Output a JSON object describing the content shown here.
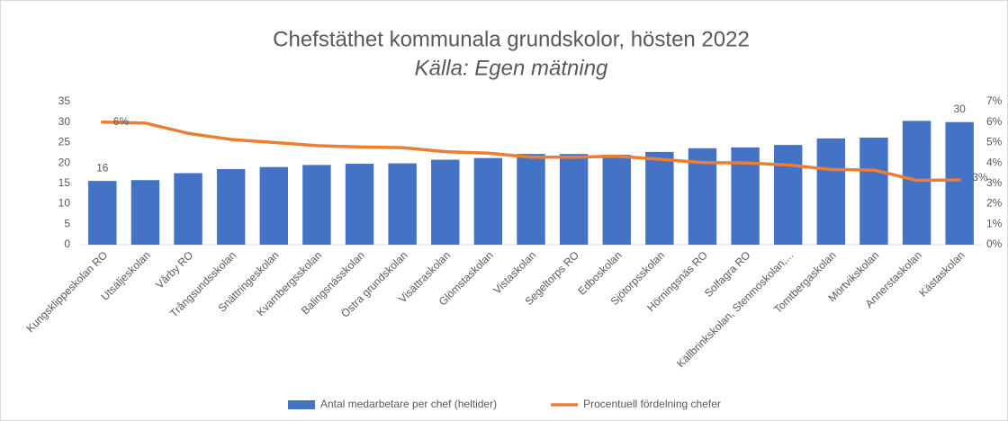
{
  "chart_data": {
    "type": "bar_line",
    "title": "Chefstäthet kommunala grundskolor, hösten 2022",
    "subtitle": "Källa: Egen mätning",
    "categories": [
      "Kungsklippeskolan RO",
      "Utsäljeskolan",
      "Vårby RO",
      "Trångsundsskolan",
      "Snättringeskolan",
      "Kvarnbergsskolan",
      "Balingsnässkolan",
      "Östra grundskolan",
      "Visättraskolan",
      "Glömstaskolan",
      "Vistaskolan",
      "Segeltorps RO",
      "Edboskolan",
      "Sjötorpsskolan",
      "Hörningsnäs RO",
      "Solfagra RO",
      "Källbrinkskolan, Stenmoskolan,...",
      "Tomtbergaskolan",
      "Mörtvikskolan",
      "Annerstaskolan",
      "Kästaskolan"
    ],
    "series": [
      {
        "name": "Antal medarbetare per chef (heltider)",
        "type": "bar",
        "color": "#4472c4",
        "values": [
          15.6,
          15.8,
          17.5,
          18.5,
          19.0,
          19.5,
          19.8,
          19.9,
          20.8,
          21.2,
          22.2,
          22.2,
          22.0,
          22.7,
          23.6,
          23.8,
          24.4,
          26.0,
          26.2,
          30.3,
          30.0
        ],
        "value_labels": [
          "16",
          null,
          null,
          null,
          null,
          null,
          null,
          null,
          null,
          null,
          null,
          null,
          null,
          null,
          null,
          null,
          null,
          null,
          null,
          null,
          "30"
        ]
      },
      {
        "name": "Procentuell fördelning chefer",
        "type": "line",
        "axis": "y2",
        "color": "#ed7d31",
        "values": [
          6.0,
          5.95,
          5.45,
          5.15,
          5.0,
          4.85,
          4.78,
          4.75,
          4.55,
          4.48,
          4.28,
          4.28,
          4.33,
          4.18,
          4.02,
          4.0,
          3.9,
          3.68,
          3.65,
          3.15,
          3.17
        ],
        "value_labels": [
          "6%",
          null,
          null,
          null,
          null,
          null,
          null,
          null,
          null,
          null,
          null,
          null,
          null,
          null,
          null,
          null,
          null,
          null,
          null,
          null,
          "3%"
        ]
      }
    ],
    "ylim": [
      0,
      35
    ],
    "yticks": [
      0,
      5,
      10,
      15,
      20,
      25,
      30,
      35
    ],
    "y2lim": [
      0,
      7
    ],
    "y2ticks": [
      {
        "value": 0,
        "label": "0%"
      },
      {
        "value": 1,
        "label": "1%"
      },
      {
        "value": 2,
        "label": "2%"
      },
      {
        "value": 3,
        "label": "3%"
      },
      {
        "value": 4,
        "label": "4%"
      },
      {
        "value": 5,
        "label": "5%"
      },
      {
        "value": 6,
        "label": "6%"
      },
      {
        "value": 7,
        "label": "7%"
      }
    ],
    "legend": "bottom"
  }
}
